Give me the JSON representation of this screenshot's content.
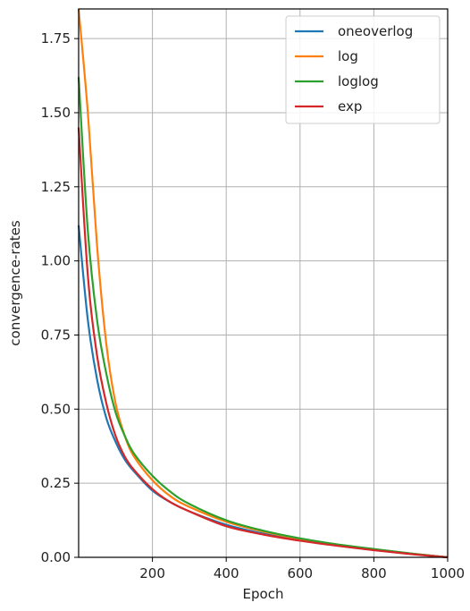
{
  "chart_data": {
    "type": "line",
    "title": "",
    "xlabel": "Epoch",
    "ylabel": "convergence-rates",
    "xlim": [
      0,
      1000
    ],
    "ylim": [
      0,
      1.85
    ],
    "xticks": [
      200,
      400,
      600,
      800,
      1000
    ],
    "xtick_labels": [
      "200",
      "400",
      "600",
      "800",
      "1000"
    ],
    "yticks": [
      0,
      0.25,
      0.5,
      0.75,
      1.0,
      1.25,
      1.5,
      1.75
    ],
    "ytick_labels": [
      "0.00",
      "0.25",
      "0.50",
      "0.75",
      "1.00",
      "1.25",
      "1.50",
      "1.75"
    ],
    "grid": true,
    "legend_position": "top-right",
    "x": [
      0,
      25,
      50,
      75,
      100,
      125,
      150,
      200,
      250,
      300,
      400,
      500,
      600,
      700,
      800,
      900,
      1000
    ],
    "series": [
      {
        "name": "oneoverlog",
        "color": "#1f77b4",
        "values": [
          1.12,
          0.8,
          0.6,
          0.47,
          0.39,
          0.33,
          0.29,
          0.225,
          0.185,
          0.155,
          0.11,
          0.08,
          0.058,
          0.04,
          0.025,
          0.012,
          0.0
        ]
      },
      {
        "name": "log",
        "color": "#ff7f0e",
        "values": [
          1.85,
          1.5,
          1.05,
          0.72,
          0.52,
          0.41,
          0.34,
          0.26,
          0.205,
          0.17,
          0.12,
          0.087,
          0.062,
          0.043,
          0.027,
          0.013,
          0.0
        ]
      },
      {
        "name": "loglog",
        "color": "#2ca02c",
        "values": [
          1.62,
          1.1,
          0.8,
          0.62,
          0.49,
          0.41,
          0.35,
          0.275,
          0.22,
          0.18,
          0.125,
          0.09,
          0.064,
          0.044,
          0.028,
          0.013,
          0.0
        ]
      },
      {
        "name": "exp",
        "color": "#d62728",
        "values": [
          1.45,
          0.95,
          0.68,
          0.52,
          0.41,
          0.34,
          0.295,
          0.23,
          0.185,
          0.155,
          0.105,
          0.077,
          0.056,
          0.039,
          0.024,
          0.011,
          0.0
        ]
      }
    ]
  }
}
